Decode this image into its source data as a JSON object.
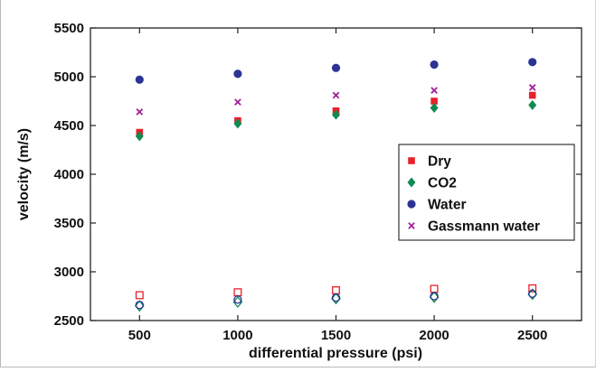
{
  "chart_data": {
    "type": "scatter",
    "xlabel": "differential pressure (psi)",
    "ylabel": "velocity (m/s)",
    "xlim": [
      250,
      2750
    ],
    "ylim": [
      2500,
      5500
    ],
    "x_ticks": [
      500,
      1000,
      1500,
      2000,
      2500
    ],
    "y_ticks": [
      2500,
      3000,
      3500,
      4000,
      4500,
      5000,
      5500
    ],
    "grid": false,
    "legend_position": "right",
    "x": [
      500,
      1000,
      1500,
      2000,
      2500
    ],
    "series": [
      {
        "name": "Dry",
        "group": "upper",
        "marker": "square",
        "color": "#e8202a",
        "values": [
          4430,
          4550,
          4650,
          4750,
          4810
        ]
      },
      {
        "name": "CO2",
        "group": "upper",
        "marker": "diamond",
        "color": "#118a52",
        "values": [
          4390,
          4520,
          4610,
          4680,
          4710
        ]
      },
      {
        "name": "Water",
        "group": "upper",
        "marker": "circle",
        "color": "#2b3494",
        "values": [
          4970,
          5030,
          5090,
          5125,
          5150
        ]
      },
      {
        "name": "Gassmann water",
        "group": "upper",
        "marker": "x",
        "color": "#a0229a",
        "values": [
          4640,
          4740,
          4810,
          4860,
          4890
        ]
      },
      {
        "name": "Dry",
        "group": "lower",
        "marker": "square-open",
        "color": "#e8202a",
        "values": [
          2760,
          2790,
          2810,
          2825,
          2830
        ]
      },
      {
        "name": "CO2",
        "group": "lower",
        "marker": "diamond-open",
        "color": "#118a52",
        "values": [
          2650,
          2690,
          2725,
          2740,
          2770
        ]
      },
      {
        "name": "Water",
        "group": "lower",
        "marker": "circle-open",
        "color": "#2b3494",
        "values": [
          2660,
          2715,
          2735,
          2750,
          2775
        ]
      }
    ],
    "legend": [
      {
        "label": "Dry",
        "marker": "square",
        "color": "#e8202a"
      },
      {
        "label": "CO2",
        "marker": "diamond",
        "color": "#118a52"
      },
      {
        "label": "Water",
        "marker": "circle",
        "color": "#2b3494"
      },
      {
        "label": "Gassmann water",
        "marker": "x",
        "color": "#a0229a"
      }
    ]
  }
}
